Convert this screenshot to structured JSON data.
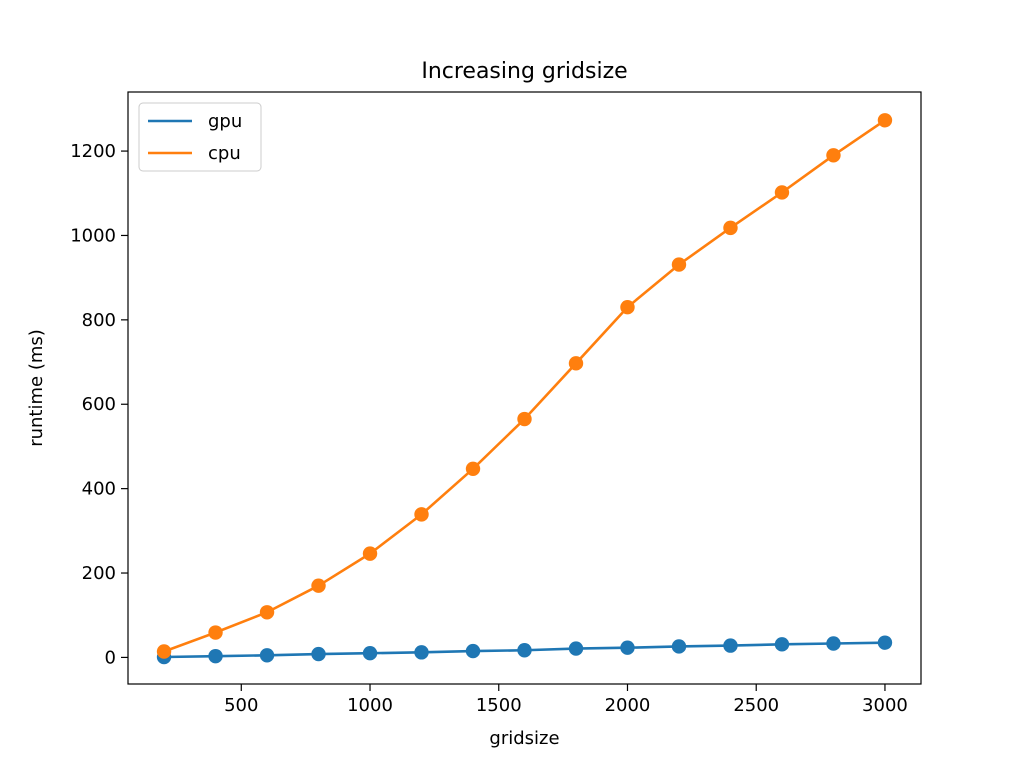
{
  "chart_data": {
    "type": "line",
    "title": "Increasing gridsize",
    "xlabel": "gridsize",
    "ylabel": "runtime (ms)",
    "x": [
      200,
      400,
      600,
      800,
      1000,
      1200,
      1400,
      1600,
      1800,
      2000,
      2200,
      2400,
      2600,
      2800,
      3000
    ],
    "series": [
      {
        "name": "gpu",
        "color": "#1f77b4",
        "values": [
          1,
          3,
          5,
          8,
          10,
          12,
          15,
          17,
          21,
          23,
          26,
          28,
          31,
          33,
          35
        ]
      },
      {
        "name": "cpu",
        "color": "#ff7f0e",
        "values": [
          14,
          59,
          107,
          170,
          246,
          339,
          447,
          565,
          697,
          830,
          931,
          1018,
          1102,
          1190,
          1273
        ]
      }
    ],
    "xlim": [
      60,
      3140
    ],
    "ylim": [
      -63,
      1340
    ],
    "xticks": [
      500,
      1000,
      1500,
      2000,
      2500,
      3000
    ],
    "xtick_labels": [
      "500",
      "1000",
      "1500",
      "2000",
      "2500",
      "3000"
    ],
    "yticks": [
      0,
      200,
      400,
      600,
      800,
      1000,
      1200
    ],
    "ytick_labels": [
      "0",
      "200",
      "400",
      "600",
      "800",
      "1000",
      "1200"
    ],
    "grid": false,
    "legend_position": "top-left",
    "markers": "circle"
  }
}
